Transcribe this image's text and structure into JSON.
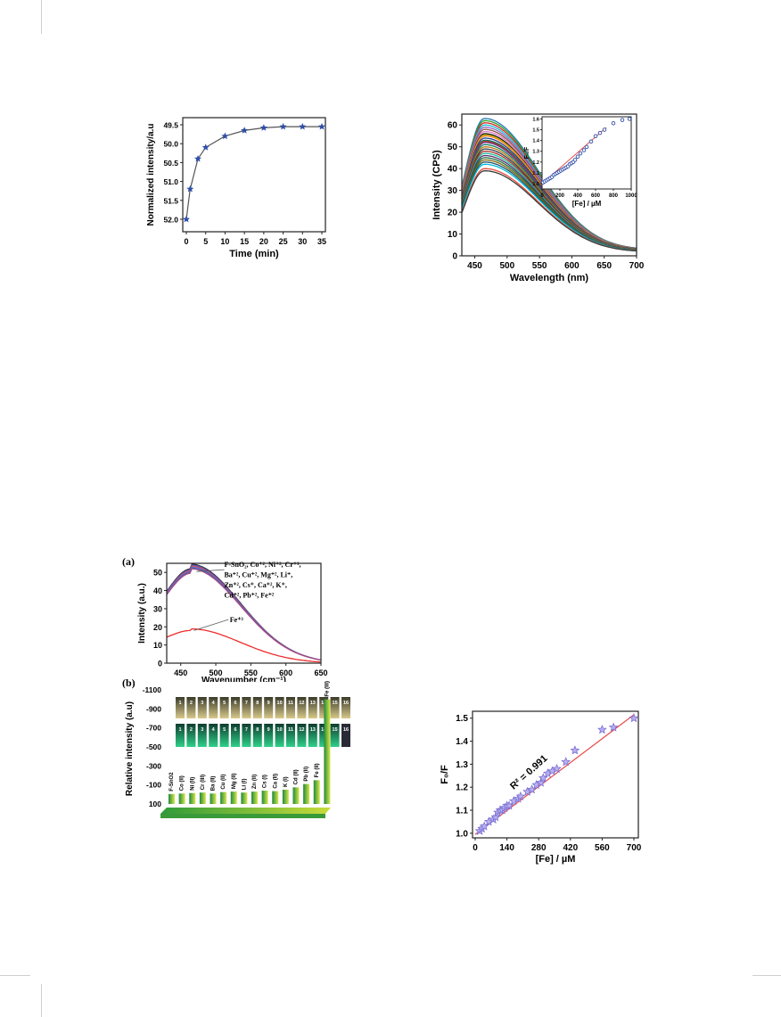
{
  "chart_data": [
    {
      "type": "scatter",
      "xlabel": "Time (min)",
      "ylabel": "Normalized intensity/a.u",
      "xlim": [
        0,
        35
      ],
      "xticks": [
        "0",
        "5",
        "10",
        "15",
        "20",
        "25",
        "30",
        "35"
      ],
      "yticks": [
        "49.5",
        "50.0",
        "50.5",
        "51.0",
        "51.5",
        "52.0"
      ],
      "y_reversed": true,
      "x": [
        0,
        1,
        3,
        5,
        10,
        15,
        20,
        25,
        30,
        35
      ],
      "values": [
        52.0,
        51.2,
        50.4,
        50.1,
        49.8,
        49.65,
        49.58,
        49.55,
        49.55,
        49.55
      ],
      "marker_color": "#2f4fa8",
      "line_color": "#555555"
    },
    {
      "type": "line",
      "xlabel": "Wavelength (nm)",
      "ylabel": "Intensity (CPS)",
      "xlim": [
        430,
        700
      ],
      "ylim": [
        0,
        65
      ],
      "xticks": [
        "450",
        "500",
        "550",
        "600",
        "650",
        "700"
      ],
      "yticks": [
        "0",
        "10",
        "20",
        "30",
        "40",
        "50",
        "60"
      ],
      "peak_x": 465,
      "series_peaks": [
        63,
        62,
        61,
        60,
        59,
        58,
        57,
        56,
        55.5,
        55,
        54,
        53,
        52.5,
        52,
        51,
        50,
        49,
        48,
        47,
        46,
        45,
        44,
        43,
        42,
        40,
        39
      ],
      "series_colors": [
        "#1f77b4",
        "#2ca02c",
        "#d62728",
        "#17becf",
        "#9467bd",
        "#8c564b",
        "#e377c2",
        "#000000",
        "#bcbd22",
        "#ff7f0e",
        "#1f3a93",
        "#0b6e4f",
        "#c0392b",
        "#6c3483",
        "#117a65",
        "#b9770e",
        "#2e4053",
        "#a93226",
        "#1abc9c",
        "#5b2c6f",
        "#196f3d",
        "#7d6608",
        "#1b4f72",
        "#00bcd4",
        "#e74c3c",
        "#3a3a3a"
      ],
      "inset": {
        "xlabel": "[Fe] / µM",
        "ylabel": "F₀/F",
        "xlim": [
          0,
          1000
        ],
        "ylim": [
          0.95,
          1.62
        ],
        "xticks": [
          "0",
          "200",
          "400",
          "600",
          "800",
          "1000"
        ],
        "yticks": [
          "1.0",
          "1.1",
          "1.2",
          "1.3",
          "1.4",
          "1.5",
          "1.6"
        ],
        "x": [
          10,
          30,
          50,
          70,
          90,
          110,
          130,
          150,
          170,
          190,
          210,
          230,
          250,
          270,
          290,
          310,
          330,
          350,
          370,
          400,
          430,
          470,
          500,
          550,
          600,
          650,
          700,
          800,
          900,
          980
        ],
        "values": [
          1.01,
          1.02,
          1.03,
          1.04,
          1.05,
          1.06,
          1.08,
          1.09,
          1.1,
          1.11,
          1.12,
          1.13,
          1.14,
          1.15,
          1.16,
          1.18,
          1.19,
          1.2,
          1.22,
          1.25,
          1.28,
          1.31,
          1.34,
          1.39,
          1.44,
          1.47,
          1.5,
          1.56,
          1.59,
          1.6
        ],
        "fit": [
          [
            0,
            1.0
          ],
          [
            720,
            1.52
          ]
        ]
      }
    },
    {
      "type": "line",
      "panel_label": "(a)",
      "xlabel": "Wavenumber (cm⁻¹)",
      "ylabel": "Intensity (a.u.)",
      "xlim": [
        430,
        650
      ],
      "ylim": [
        0,
        55
      ],
      "xticks": [
        "450",
        "500",
        "550",
        "600",
        "650"
      ],
      "yticks": [
        "0",
        "10",
        "20",
        "30",
        "40",
        "50"
      ],
      "peak_x": 465,
      "group_annotation_lines": [
        "F-SnO₂, Co⁺², Ni⁺², Cr⁺³,",
        "Ba⁺², Cu⁺², Mg⁺², Li⁺,",
        "Zn⁺², Cs⁺, Ca⁺², K⁺,",
        "Cd⁺², Pb⁺², Fe⁺²"
      ],
      "fe3_annotation": "Fe⁺³",
      "group_peaks": [
        52,
        51.5,
        51,
        50.5,
        50,
        49.5
      ],
      "group_colors": [
        "#2b2b2b",
        "#4a57c8",
        "#d04848",
        "#7b63c9",
        "#3567b0",
        "#b04a82"
      ],
      "fe3_peak": 18,
      "fe3_color": "#ee2c2c"
    },
    {
      "type": "bar",
      "panel_label": "(b)",
      "ylabel": "Relative intensity (a.u)",
      "yticks": [
        "-1100",
        "-900",
        "-700",
        "-500",
        "-300",
        "-100",
        "100"
      ],
      "categories": [
        "F-SnO2",
        "Co (II)",
        "Ni (II)",
        "Cr (III)",
        "Ba (II)",
        "Cu (II)",
        "Mg (II)",
        "Li (I)",
        "Zn (II)",
        "Cs (I)",
        "Ca (II)",
        "K (I)",
        "Cd (II)",
        "Pb (II)",
        "Fe (II)",
        "Fe (III)"
      ],
      "values": [
        -5,
        -10,
        -15,
        -20,
        -10,
        -25,
        -30,
        -20,
        -30,
        -40,
        -35,
        -50,
        -75,
        -110,
        -150,
        -1000
      ],
      "vial_numbers": [
        "1",
        "2",
        "3",
        "4",
        "5",
        "6",
        "7",
        "8",
        "9",
        "10",
        "11",
        "12",
        "13",
        "14",
        "15",
        "16"
      ]
    },
    {
      "type": "scatter",
      "xlabel": "[Fe] / µM",
      "ylabel": "F₀/F",
      "xlim": [
        0,
        700
      ],
      "ylim": [
        0.98,
        1.53
      ],
      "xticks": [
        "0",
        "140",
        "280",
        "420",
        "560",
        "700"
      ],
      "yticks": [
        "1.0",
        "1.1",
        "1.2",
        "1.3",
        "1.4",
        "1.5"
      ],
      "annotation": "R² = 0.991",
      "x": [
        20,
        30,
        40,
        60,
        80,
        90,
        100,
        110,
        120,
        130,
        140,
        150,
        170,
        190,
        200,
        230,
        250,
        270,
        290,
        300,
        320,
        340,
        360,
        400,
        440,
        560,
        610,
        700
      ],
      "values": [
        1.01,
        1.02,
        1.03,
        1.05,
        1.06,
        1.07,
        1.09,
        1.1,
        1.1,
        1.11,
        1.12,
        1.12,
        1.14,
        1.15,
        1.16,
        1.18,
        1.19,
        1.21,
        1.22,
        1.24,
        1.26,
        1.27,
        1.28,
        1.31,
        1.36,
        1.45,
        1.46,
        1.5
      ],
      "fit": [
        [
          0,
          0.995
        ],
        [
          700,
          1.515
        ]
      ],
      "marker_color": "#7a6fd4",
      "fit_color": "#e84a4a"
    }
  ]
}
